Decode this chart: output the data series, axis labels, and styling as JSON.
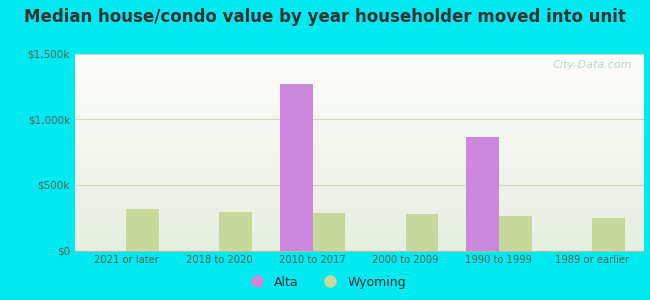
{
  "title": "Median house/condo value by year householder moved into unit",
  "categories": [
    "2021 or later",
    "2018 to 2020",
    "2010 to 2017",
    "2000 to 2009",
    "1990 to 1999",
    "1989 or earlier"
  ],
  "alta_values": [
    0,
    0,
    1270000,
    0,
    865000,
    0
  ],
  "wyoming_values": [
    320000,
    295000,
    285000,
    275000,
    260000,
    245000
  ],
  "alta_color": "#cc88dd",
  "wyoming_color": "#c8d89a",
  "ylim": [
    0,
    1500000
  ],
  "yticks": [
    0,
    500000,
    1000000,
    1500000
  ],
  "ytick_labels": [
    "$0",
    "$500k",
    "$1,000k",
    "$1,500k"
  ],
  "bar_width": 0.35,
  "background_outer": "#00e8f0",
  "watermark": "City-Data.com",
  "legend_alta": "Alta",
  "legend_wyoming": "Wyoming",
  "title_fontsize": 12,
  "grid_color": "#d0d8c0"
}
